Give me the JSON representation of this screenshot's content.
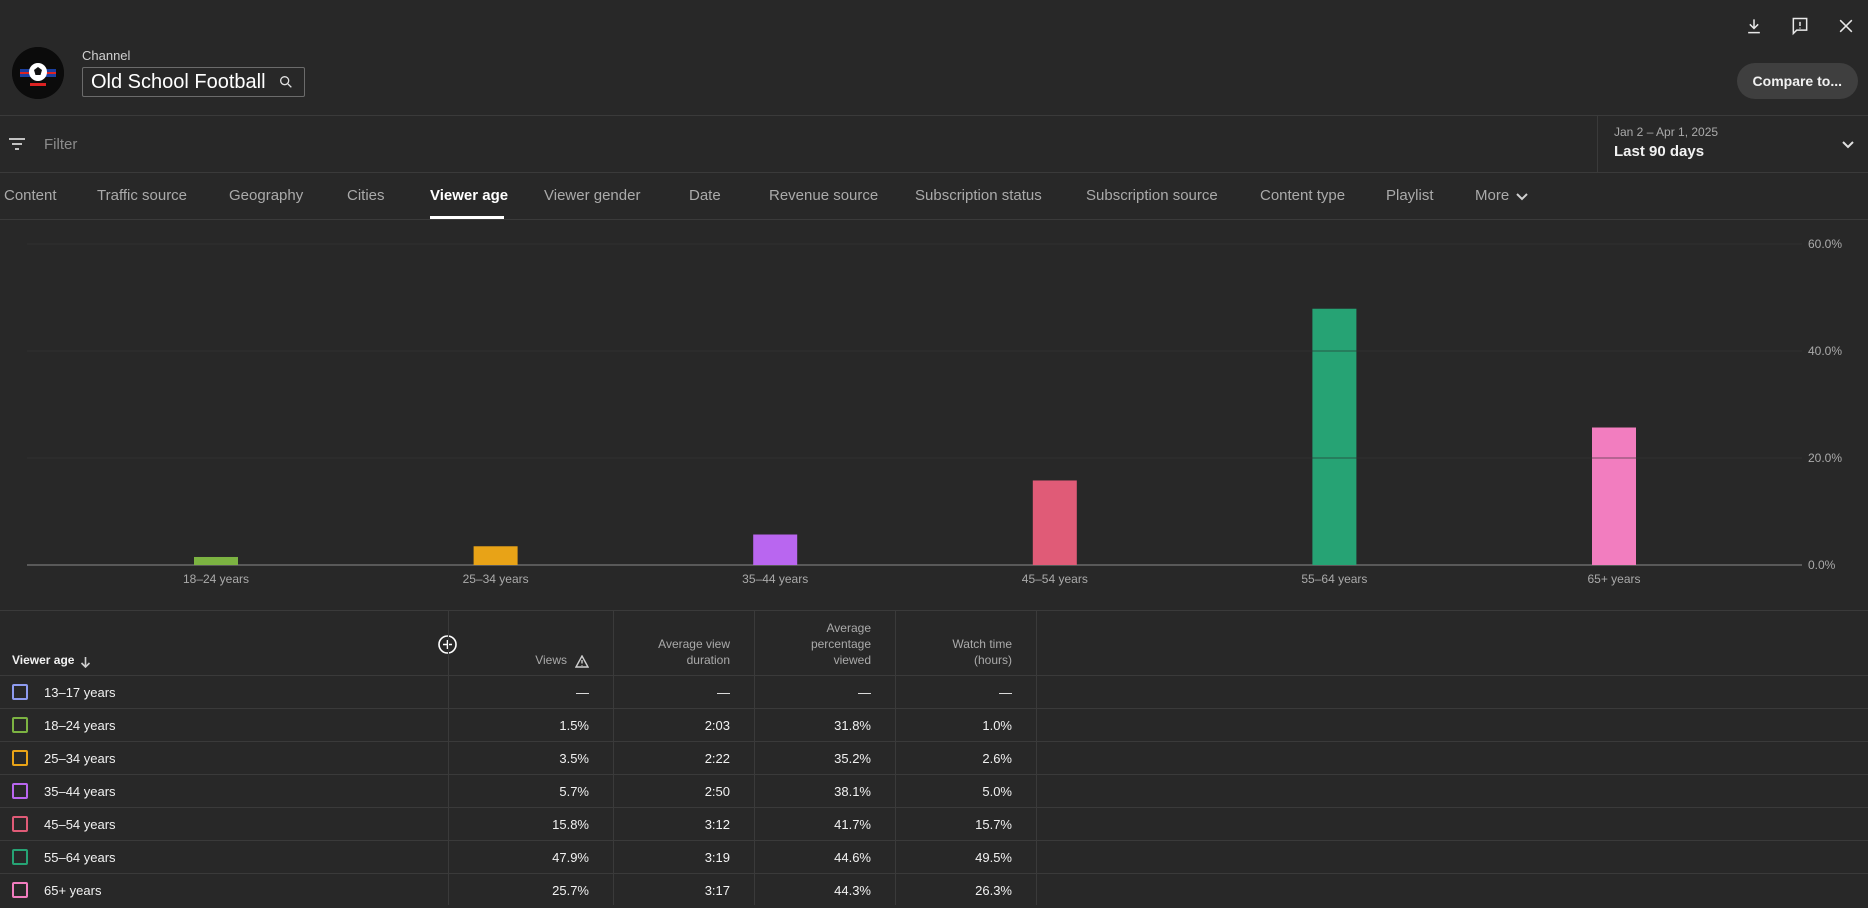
{
  "header": {
    "channel_label": "Channel",
    "channel_name": "Old School Football",
    "compare_label": "Compare to...",
    "icons": [
      "download-icon",
      "feedback-icon",
      "close-icon",
      "search-icon"
    ]
  },
  "filter": {
    "placeholder": "Filter",
    "date_range": "Jan 2 – Apr 1, 2025",
    "date_preset": "Last 90 days"
  },
  "tabs": [
    {
      "label": "Content"
    },
    {
      "label": "Traffic source"
    },
    {
      "label": "Geography"
    },
    {
      "label": "Cities"
    },
    {
      "label": "Viewer age",
      "active": true
    },
    {
      "label": "Viewer gender"
    },
    {
      "label": "Date"
    },
    {
      "label": "Revenue source"
    },
    {
      "label": "Subscription status"
    },
    {
      "label": "Subscription source"
    },
    {
      "label": "Content type"
    },
    {
      "label": "Playlist"
    },
    {
      "label": "More"
    }
  ],
  "chart_data": {
    "type": "bar",
    "categories": [
      "18–24 years",
      "25–34 years",
      "35–44 years",
      "45–54 years",
      "55–64 years",
      "65+ years"
    ],
    "values": [
      1.5,
      3.5,
      5.7,
      15.8,
      47.9,
      25.7
    ],
    "colors": [
      "#7cb342",
      "#e8a317",
      "#b966f0",
      "#e05b77",
      "#26a374",
      "#f27dbf"
    ],
    "ylim": [
      0,
      60
    ],
    "yticks": [
      "0.0%",
      "20.0%",
      "40.0%",
      "60.0%"
    ],
    "ytick_values": [
      0,
      20,
      40,
      60
    ],
    "grid": true
  },
  "table": {
    "columns": [
      "Viewer age",
      "Views",
      "Average view duration",
      "Average percentage viewed",
      "Watch time (hours)"
    ],
    "col_views": "Views",
    "col_avd": [
      "Average view",
      "duration"
    ],
    "col_apv": [
      "Average",
      "percentage",
      "viewed"
    ],
    "col_wt": [
      "Watch time",
      "(hours)"
    ],
    "rows": [
      {
        "label": "13–17 years",
        "color": "#8e9bf0",
        "views": "—",
        "avd": "—",
        "apv": "—",
        "wt": "—"
      },
      {
        "label": "18–24 years",
        "color": "#7cb342",
        "views": "1.5%",
        "avd": "2:03",
        "apv": "31.8%",
        "wt": "1.0%"
      },
      {
        "label": "25–34 years",
        "color": "#e8a317",
        "views": "3.5%",
        "avd": "2:22",
        "apv": "35.2%",
        "wt": "2.6%"
      },
      {
        "label": "35–44 years",
        "color": "#b966f0",
        "views": "5.7%",
        "avd": "2:50",
        "apv": "38.1%",
        "wt": "5.0%"
      },
      {
        "label": "45–54 years",
        "color": "#e05b77",
        "views": "15.8%",
        "avd": "3:12",
        "apv": "41.7%",
        "wt": "15.7%"
      },
      {
        "label": "55–64 years",
        "color": "#26a374",
        "views": "47.9%",
        "avd": "3:19",
        "apv": "44.6%",
        "wt": "49.5%"
      },
      {
        "label": "65+ years",
        "color": "#f27dbf",
        "views": "25.7%",
        "avd": "3:17",
        "apv": "44.3%",
        "wt": "26.3%"
      }
    ]
  }
}
